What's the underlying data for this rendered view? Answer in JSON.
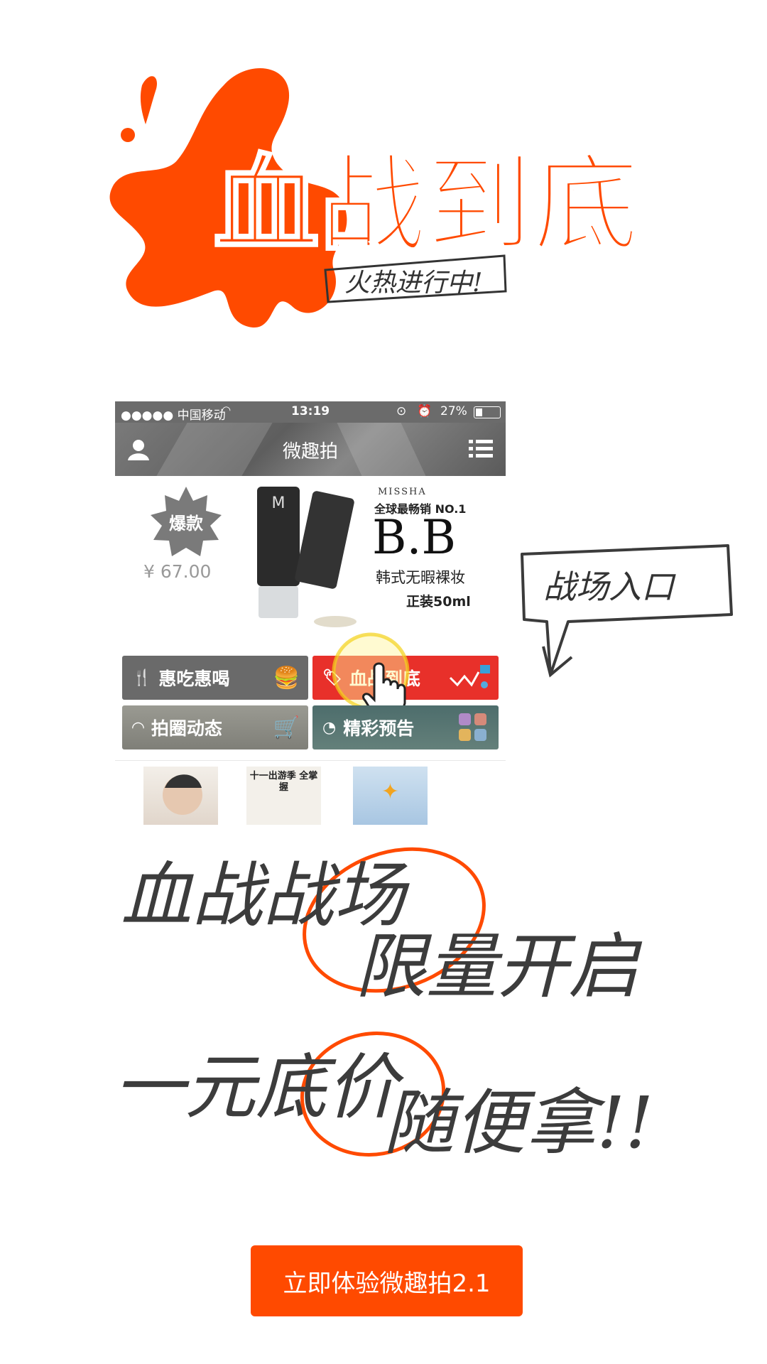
{
  "hero": {
    "title": "血战到底",
    "subtitle": "火热进行中!"
  },
  "phone": {
    "status": {
      "carrier": "●●●●● 中国移动",
      "time": "13:19",
      "battery": "27%"
    },
    "nav": {
      "title": "微趣拍"
    },
    "banner": {
      "badge": "爆款",
      "price": "¥ 67.00",
      "brand": "MISSHA",
      "tagline": "全球最畅销 NO.1",
      "product": "B.B",
      "desc": "韩式无暇裸妆",
      "size": "正装50ml"
    },
    "tiles": [
      {
        "label": "惠吃惠喝",
        "color": "#6a6a6a"
      },
      {
        "label": "血战到底",
        "color": "#e8302a"
      },
      {
        "label": "拍圈动态",
        "color": "#8a8a82"
      },
      {
        "label": "精彩预告",
        "color": "#5a7a78"
      }
    ],
    "thumbs": [
      {
        "label": ""
      },
      {
        "label": "十一出游季 全掌握"
      },
      {
        "label": ""
      }
    ]
  },
  "callout": {
    "text": "战场入口"
  },
  "slogan": {
    "line1": "血战战场",
    "line2": "限量开启",
    "line3": "一元底价",
    "line4": "随便拿!!"
  },
  "cta": {
    "label": "立即体验微趣拍2.1"
  },
  "colors": {
    "accent": "#ff4a00",
    "red_tile": "#e8302a"
  }
}
